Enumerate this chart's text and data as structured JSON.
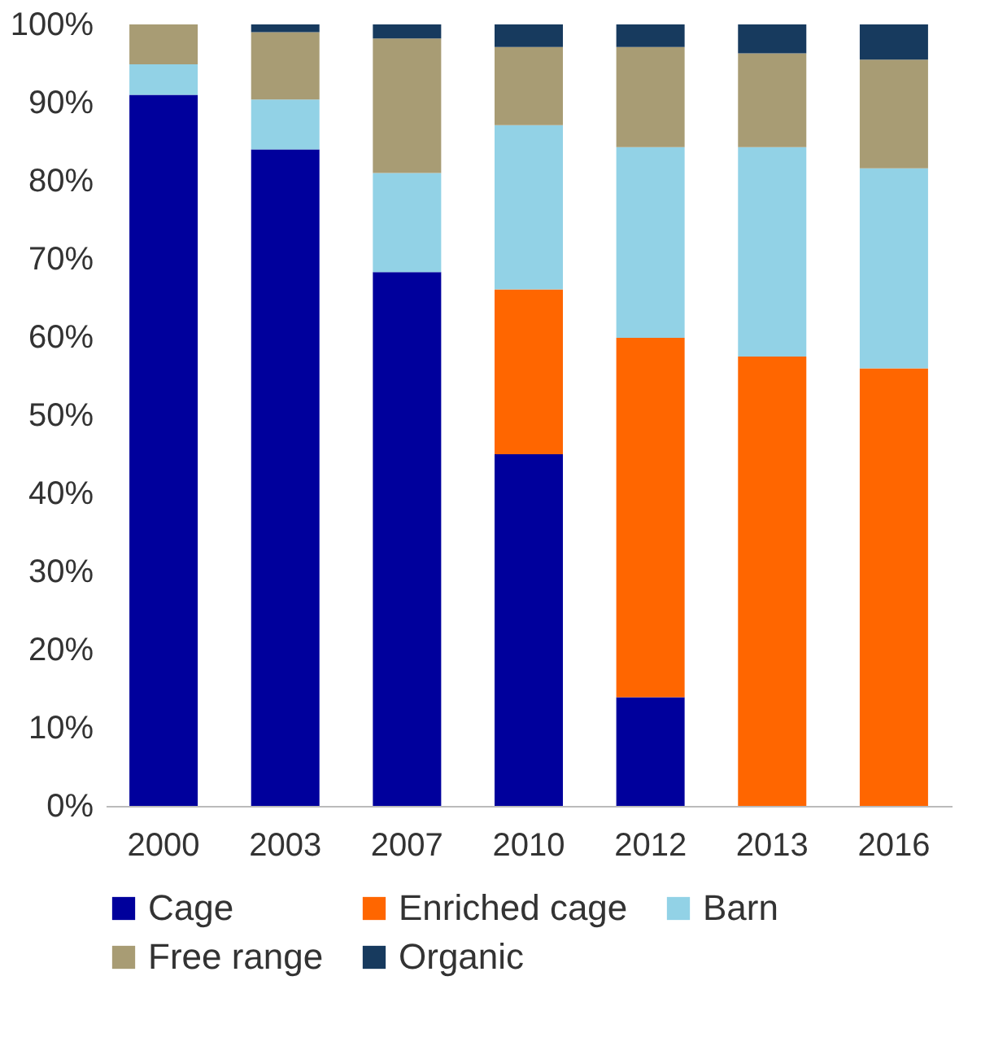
{
  "chart_data": {
    "type": "bar",
    "stacked": true,
    "categories": [
      "2000",
      "2003",
      "2007",
      "2010",
      "2012",
      "2013",
      "2016"
    ],
    "series": [
      {
        "name": "Cage",
        "color": "#00009c",
        "values": [
          91,
          84,
          68.3,
          45,
          13.9,
          0,
          0
        ]
      },
      {
        "name": "Enriched cage",
        "color": "#ff6600",
        "values": [
          0,
          0,
          0,
          21.1,
          46,
          57.5,
          56
        ]
      },
      {
        "name": "Barn",
        "color": "#92d2e6",
        "values": [
          3.9,
          6.4,
          12.7,
          21,
          24.4,
          26.8,
          25.6
        ]
      },
      {
        "name": "Free range",
        "color": "#a89c74",
        "values": [
          5.1,
          8.6,
          17.2,
          10,
          12.8,
          12,
          13.9
        ]
      },
      {
        "name": "Organic",
        "color": "#173a5e",
        "values": [
          0,
          1,
          1.8,
          2.9,
          2.9,
          3.7,
          4.5
        ]
      }
    ],
    "ylim": [
      0,
      100
    ],
    "yticks": [
      {
        "value": 0,
        "label": "0%"
      },
      {
        "value": 10,
        "label": "10%"
      },
      {
        "value": 20,
        "label": "20%"
      },
      {
        "value": 30,
        "label": "30%"
      },
      {
        "value": 40,
        "label": "40%"
      },
      {
        "value": 50,
        "label": "50%"
      },
      {
        "value": 60,
        "label": "60%"
      },
      {
        "value": 70,
        "label": "70%"
      },
      {
        "value": 80,
        "label": "80%"
      },
      {
        "value": 90,
        "label": "90%"
      },
      {
        "value": 100,
        "label": "100%"
      }
    ],
    "grid": false,
    "legend": "bottom"
  }
}
